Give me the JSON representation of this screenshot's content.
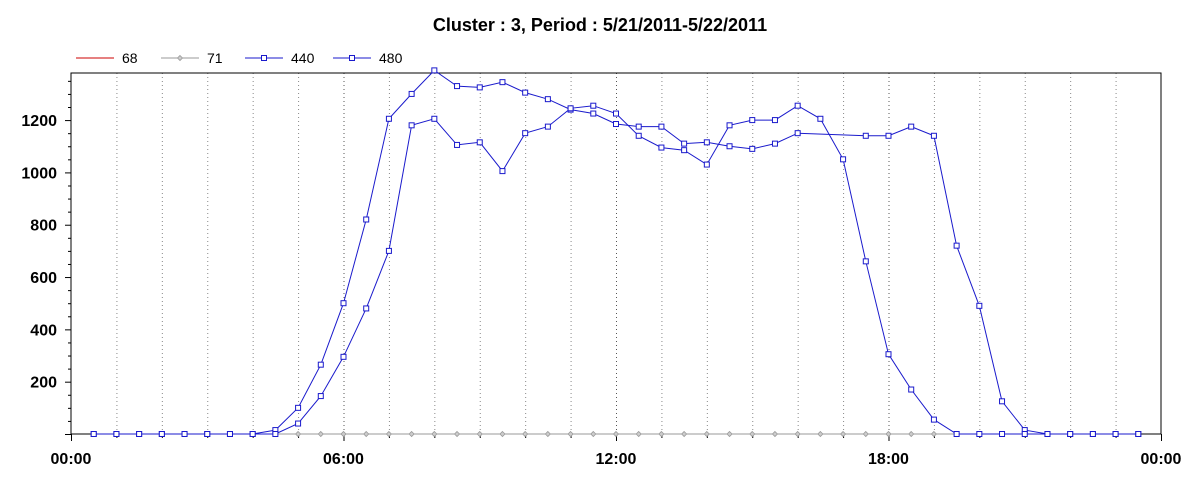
{
  "chart_data": {
    "type": "line",
    "title": "Cluster : 3, Period : 5/21/2011-5/22/2011",
    "xlabel": "",
    "ylabel": "",
    "x_range": [
      "00:00",
      "24:00"
    ],
    "ylim": [
      0,
      1380
    ],
    "x_ticks": [
      "00:00",
      "06:00",
      "12:00",
      "18:00",
      "00:00"
    ],
    "y_ticks": [
      200,
      400,
      600,
      800,
      1000,
      1200
    ],
    "grid": {
      "vertical": true,
      "horizontal": false,
      "style": "dotted"
    },
    "legend_position": "top-left",
    "series": [
      {
        "name": "68",
        "color": "#cc0000",
        "marker": "none",
        "points": []
      },
      {
        "name": "71",
        "color": "#999999",
        "marker": "diamond",
        "points": [
          [
            "00:30",
            0
          ],
          [
            "01:00",
            0
          ],
          [
            "01:30",
            0
          ],
          [
            "02:00",
            0
          ],
          [
            "02:30",
            0
          ],
          [
            "03:00",
            0
          ],
          [
            "03:30",
            0
          ],
          [
            "04:00",
            0
          ],
          [
            "04:30",
            0
          ],
          [
            "05:00",
            0
          ],
          [
            "05:30",
            0
          ],
          [
            "06:00",
            0
          ],
          [
            "06:30",
            0
          ],
          [
            "07:00",
            0
          ],
          [
            "07:30",
            0
          ],
          [
            "08:00",
            0
          ],
          [
            "08:30",
            0
          ],
          [
            "09:00",
            0
          ],
          [
            "09:30",
            0
          ],
          [
            "10:00",
            0
          ],
          [
            "10:30",
            0
          ],
          [
            "11:00",
            0
          ],
          [
            "11:30",
            0
          ],
          [
            "12:00",
            0
          ],
          [
            "12:30",
            0
          ],
          [
            "13:00",
            0
          ],
          [
            "13:30",
            0
          ],
          [
            "14:00",
            0
          ],
          [
            "14:30",
            0
          ],
          [
            "15:00",
            0
          ],
          [
            "15:30",
            0
          ],
          [
            "16:00",
            0
          ],
          [
            "16:30",
            0
          ],
          [
            "17:00",
            0
          ],
          [
            "17:30",
            0
          ],
          [
            "18:00",
            0
          ],
          [
            "18:30",
            0
          ],
          [
            "19:00",
            0
          ],
          [
            "19:30",
            0
          ],
          [
            "20:00",
            0
          ],
          [
            "20:30",
            0
          ],
          [
            "21:00",
            0
          ],
          [
            "21:30",
            0
          ],
          [
            "22:00",
            0
          ],
          [
            "22:30",
            0
          ],
          [
            "23:00",
            0
          ],
          [
            "23:30",
            0
          ]
        ]
      },
      {
        "name": "440",
        "color": "#1a1acc",
        "marker": "square",
        "points": [
          [
            "00:30",
            0
          ],
          [
            "01:00",
            0
          ],
          [
            "01:30",
            0
          ],
          [
            "02:00",
            0
          ],
          [
            "02:30",
            0
          ],
          [
            "03:00",
            0
          ],
          [
            "03:30",
            0
          ],
          [
            "04:00",
            0
          ],
          [
            "04:30",
            15
          ],
          [
            "05:00",
            100
          ],
          [
            "05:30",
            265
          ],
          [
            "06:00",
            500
          ],
          [
            "06:30",
            820
          ],
          [
            "07:00",
            1205
          ],
          [
            "07:30",
            1300
          ],
          [
            "08:00",
            1390
          ],
          [
            "08:30",
            1330
          ],
          [
            "09:00",
            1325
          ],
          [
            "09:30",
            1345
          ],
          [
            "10:00",
            1305
          ],
          [
            "10:30",
            1280
          ],
          [
            "11:00",
            1240
          ],
          [
            "11:30",
            1225
          ],
          [
            "12:00",
            1185
          ],
          [
            "12:30",
            1175
          ],
          [
            "13:00",
            1175
          ],
          [
            "13:30",
            1110
          ],
          [
            "14:00",
            1115
          ],
          [
            "14:30",
            1100
          ],
          [
            "15:00",
            1090
          ],
          [
            "15:30",
            1110
          ],
          [
            "16:00",
            1150
          ],
          [
            "17:30",
            1140
          ],
          [
            "18:00",
            1140
          ],
          [
            "18:30",
            1175
          ],
          [
            "19:00",
            1140
          ],
          [
            "19:30",
            720
          ],
          [
            "20:00",
            490
          ],
          [
            "20:30",
            125
          ],
          [
            "21:00",
            15
          ],
          [
            "21:30",
            0
          ],
          [
            "22:00",
            0
          ],
          [
            "22:30",
            0
          ],
          [
            "23:00",
            0
          ],
          [
            "23:30",
            0
          ]
        ]
      },
      {
        "name": "480",
        "color": "#1a1acc",
        "marker": "square",
        "points": [
          [
            "00:30",
            0
          ],
          [
            "01:00",
            0
          ],
          [
            "01:30",
            0
          ],
          [
            "02:00",
            0
          ],
          [
            "02:30",
            0
          ],
          [
            "03:00",
            0
          ],
          [
            "03:30",
            0
          ],
          [
            "04:00",
            0
          ],
          [
            "04:30",
            0
          ],
          [
            "05:00",
            40
          ],
          [
            "05:30",
            145
          ],
          [
            "06:00",
            295
          ],
          [
            "06:30",
            480
          ],
          [
            "07:00",
            700
          ],
          [
            "07:30",
            1180
          ],
          [
            "08:00",
            1205
          ],
          [
            "08:30",
            1105
          ],
          [
            "09:00",
            1115
          ],
          [
            "09:30",
            1005
          ],
          [
            "10:00",
            1150
          ],
          [
            "10:30",
            1175
          ],
          [
            "11:00",
            1245
          ],
          [
            "11:30",
            1255
          ],
          [
            "12:00",
            1225
          ],
          [
            "12:30",
            1140
          ],
          [
            "13:00",
            1095
          ],
          [
            "13:30",
            1085
          ],
          [
            "14:00",
            1030
          ],
          [
            "14:30",
            1180
          ],
          [
            "15:00",
            1200
          ],
          [
            "15:30",
            1200
          ],
          [
            "16:00",
            1255
          ],
          [
            "16:30",
            1205
          ],
          [
            "17:00",
            1050
          ],
          [
            "17:30",
            660
          ],
          [
            "18:00",
            305
          ],
          [
            "18:30",
            170
          ],
          [
            "19:00",
            55
          ],
          [
            "19:30",
            0
          ],
          [
            "20:00",
            0
          ],
          [
            "20:30",
            0
          ],
          [
            "21:00",
            0
          ],
          [
            "21:30",
            0
          ],
          [
            "22:00",
            0
          ],
          [
            "22:30",
            0
          ],
          [
            "23:00",
            0
          ],
          [
            "23:30",
            0
          ]
        ]
      }
    ]
  }
}
